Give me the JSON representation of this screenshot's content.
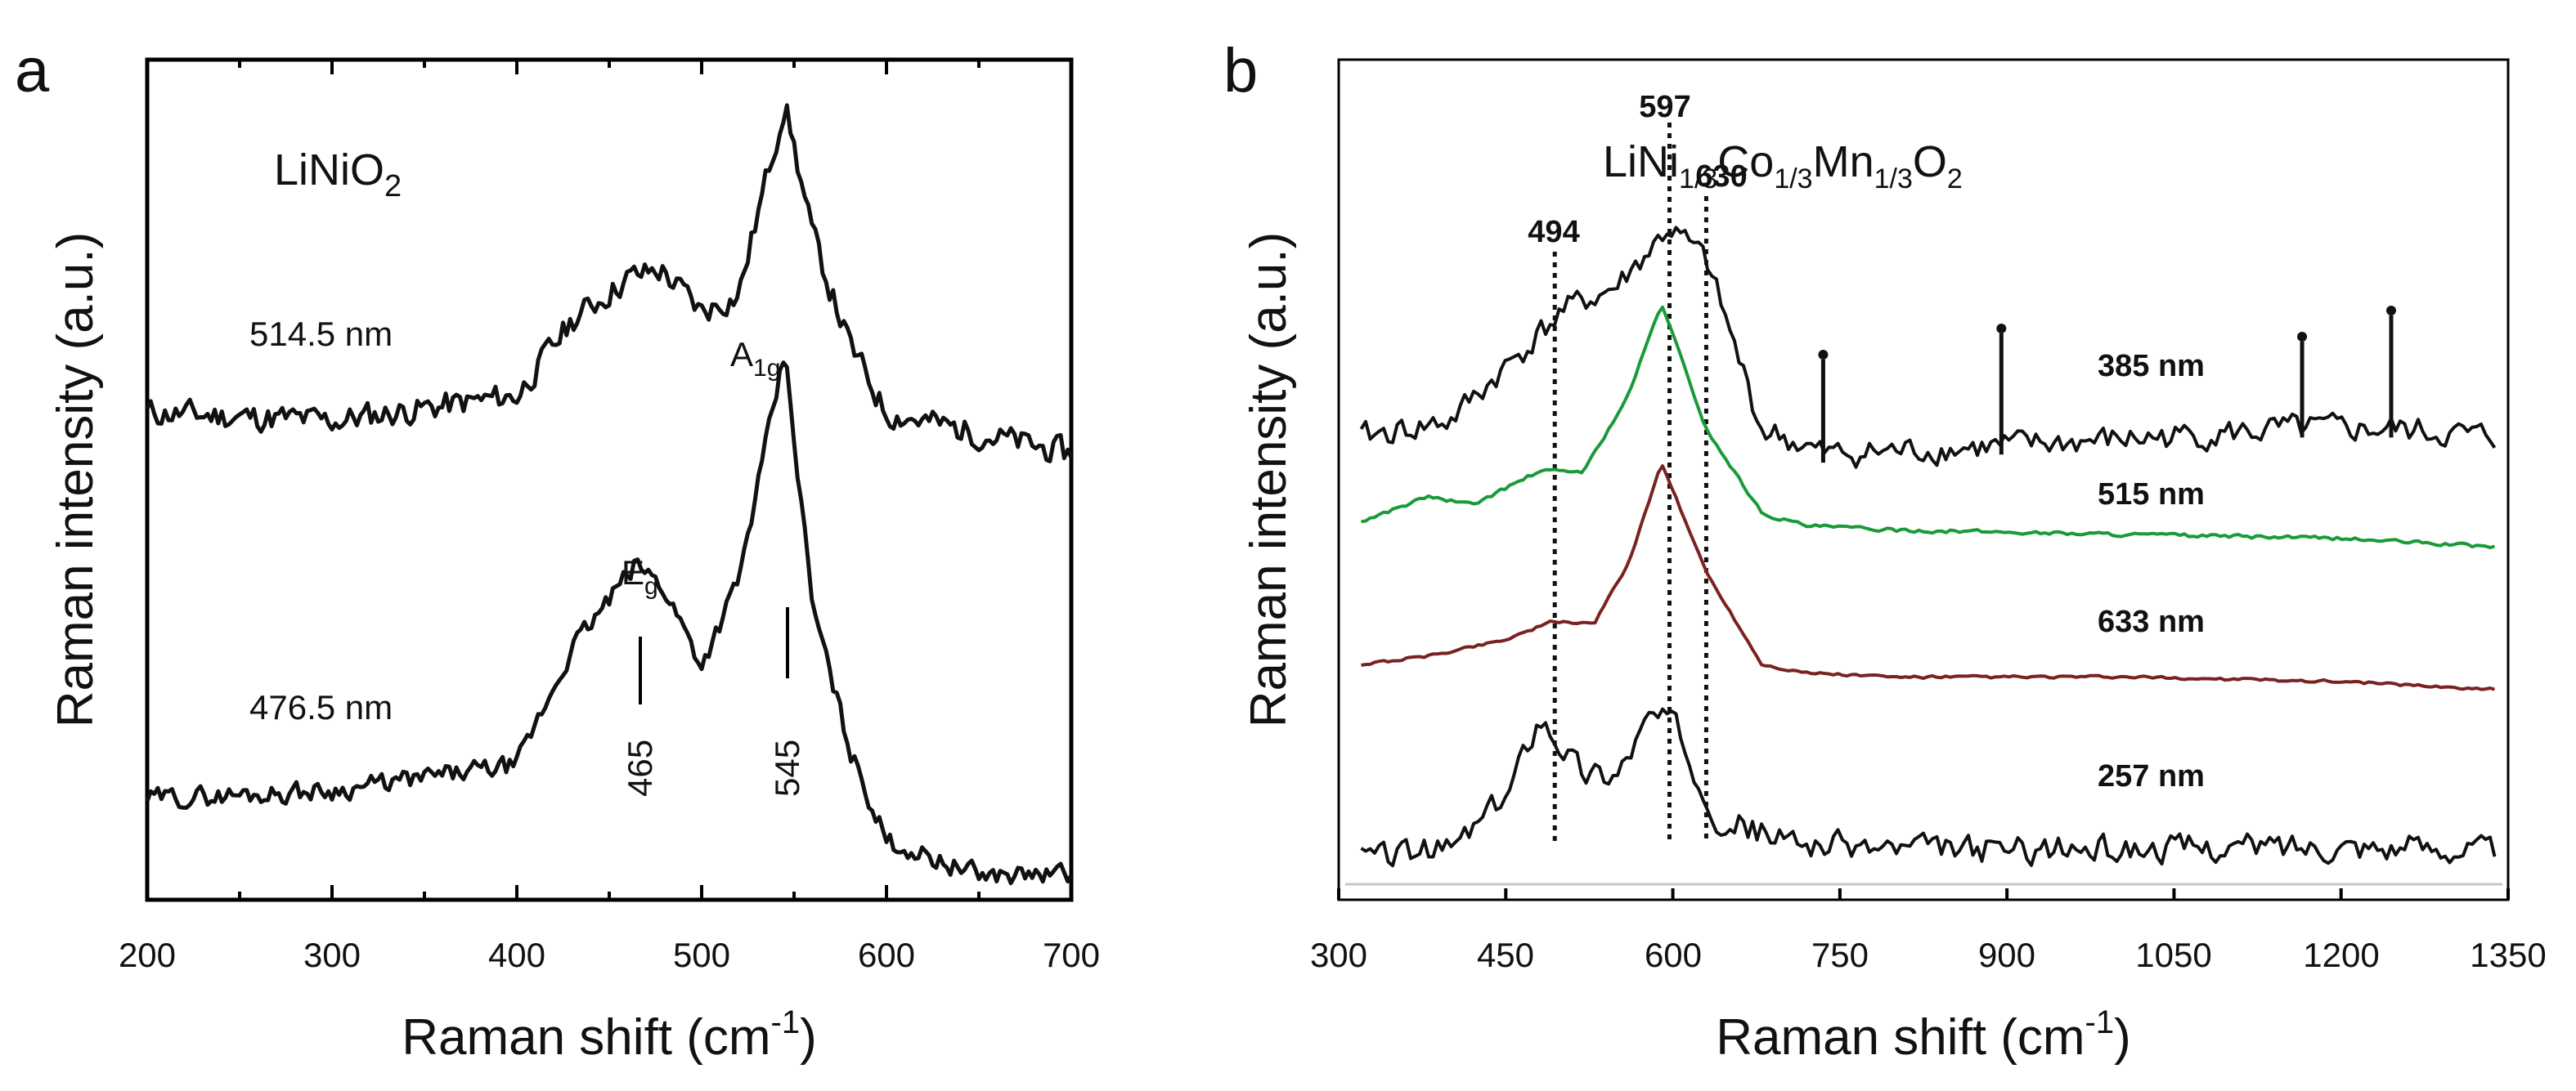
{
  "panel_a": {
    "letter": "a",
    "compound_main": "LiNiO",
    "compound_sub": "2",
    "ylabel": "Raman intensity (a.u.)",
    "xlabel_main": "Raman shift (cm",
    "xlabel_sup": "-1",
    "xlabel_close": ")",
    "x_ticks": [
      "200",
      "300",
      "400",
      "500",
      "600",
      "700"
    ],
    "peak_labels": {
      "eg_main": "E",
      "eg_sub": "g",
      "a1g_main": "A",
      "a1g_sub": "1g",
      "p465": "465",
      "p545": "545"
    }
  },
  "panel_b": {
    "letter": "b",
    "compound": [
      "LiNi",
      "1/3",
      "Co",
      "1/3",
      "Mn",
      "1/3",
      "O",
      "2"
    ],
    "ylabel": "Raman intensity (a.u.)",
    "xlabel_main": "Raman shift (cm",
    "xlabel_sup": "-1",
    "xlabel_close": ")",
    "x_ticks": [
      "300",
      "450",
      "600",
      "750",
      "900",
      "1050",
      "1200",
      "1350"
    ],
    "marker_labels": {
      "m494": "494",
      "m597": "597",
      "m630": "630"
    }
  },
  "chart_data": [
    {
      "type": "line",
      "panel": "a",
      "xlabel": "Raman shift (cm-1)",
      "ylabel": "Raman intensity (a.u.)",
      "xlim": [
        200,
        700
      ],
      "grid": false,
      "series": [
        {
          "name": "514.5 nm",
          "x": [
            200,
            300,
            400,
            430,
            460,
            478,
            500,
            520,
            545,
            560,
            580,
            600,
            700
          ],
          "y": [
            0.58,
            0.57,
            0.6,
            0.69,
            0.74,
            0.75,
            0.7,
            0.72,
            0.95,
            0.79,
            0.66,
            0.58,
            0.53
          ]
        },
        {
          "name": "476.5 nm",
          "x": [
            200,
            300,
            400,
            430,
            465,
            480,
            500,
            520,
            545,
            560,
            580,
            600,
            650,
            700
          ],
          "y": [
            0.12,
            0.13,
            0.16,
            0.3,
            0.4,
            0.37,
            0.28,
            0.38,
            0.65,
            0.35,
            0.18,
            0.07,
            0.03,
            0.03
          ]
        }
      ],
      "annotations": [
        "E_g",
        "A_1g",
        "465",
        "545"
      ]
    },
    {
      "type": "line",
      "panel": "b",
      "xlabel": "Raman shift (cm-1)",
      "ylabel": "Raman intensity (a.u.)",
      "xlim": [
        300,
        1350
      ],
      "grid": false,
      "series": [
        {
          "name": "385 nm",
          "color": "#111111",
          "x": [
            320,
            400,
            470,
            500,
            550,
            597,
            630,
            680,
            700,
            735,
            900,
            1160,
            1245,
            1340
          ],
          "y": [
            0.55,
            0.57,
            0.66,
            0.7,
            0.73,
            0.8,
            0.76,
            0.56,
            0.55,
            0.53,
            0.54,
            0.56,
            0.56,
            0.55
          ]
        },
        {
          "name": "515 nm",
          "color": "#1a9a3a",
          "x": [
            320,
            380,
            420,
            480,
            520,
            560,
            590,
            630,
            680,
            720,
            800,
            1000,
            1200,
            1340
          ],
          "y": [
            0.45,
            0.48,
            0.47,
            0.51,
            0.51,
            0.6,
            0.71,
            0.56,
            0.46,
            0.445,
            0.44,
            0.435,
            0.43,
            0.42
          ]
        },
        {
          "name": "633 nm",
          "color": "#7a2222",
          "x": [
            320,
            380,
            450,
            490,
            530,
            560,
            590,
            630,
            680,
            720,
            800,
            1000,
            1200,
            1340
          ],
          "y": [
            0.28,
            0.29,
            0.31,
            0.33,
            0.33,
            0.4,
            0.52,
            0.39,
            0.28,
            0.27,
            0.265,
            0.265,
            0.26,
            0.25
          ]
        },
        {
          "name": "257 nm",
          "color": "#111111",
          "x": [
            320,
            400,
            450,
            480,
            520,
            550,
            580,
            600,
            640,
            700,
            800,
            1000,
            1200,
            1340
          ],
          "y": [
            0.05,
            0.06,
            0.12,
            0.22,
            0.15,
            0.15,
            0.22,
            0.21,
            0.1,
            0.07,
            0.06,
            0.06,
            0.065,
            0.06
          ]
        }
      ],
      "markers": [
        494,
        597,
        630
      ],
      "spike_markers": [
        735,
        895,
        1165,
        1245
      ]
    }
  ]
}
